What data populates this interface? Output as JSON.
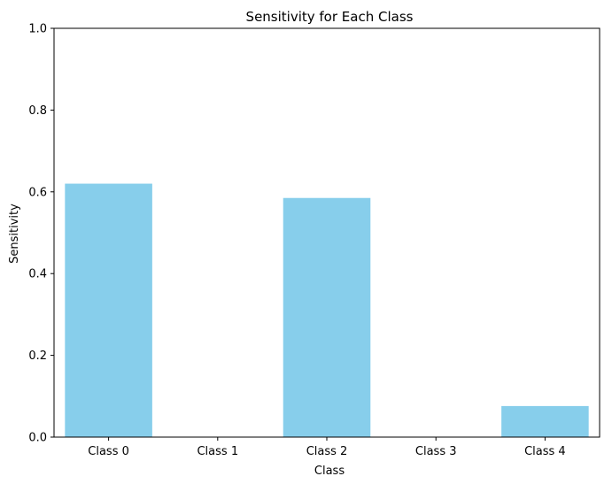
{
  "chart_data": {
    "type": "bar",
    "title": "Sensitivity for Each Class",
    "xlabel": "Class",
    "ylabel": "Sensitivity",
    "categories": [
      "Class 0",
      "Class 1",
      "Class 2",
      "Class 3",
      "Class 4"
    ],
    "values": [
      0.62,
      0.0,
      0.585,
      0.0,
      0.076
    ],
    "ylim": [
      0,
      1
    ],
    "yticks": [
      0.0,
      0.2,
      0.4,
      0.6,
      0.8,
      1.0
    ],
    "ytick_labels": [
      "0.0",
      "0.2",
      "0.4",
      "0.6",
      "0.8",
      "1.0"
    ],
    "bar_color": "#87ceeb",
    "grid": false,
    "legend": "none"
  }
}
